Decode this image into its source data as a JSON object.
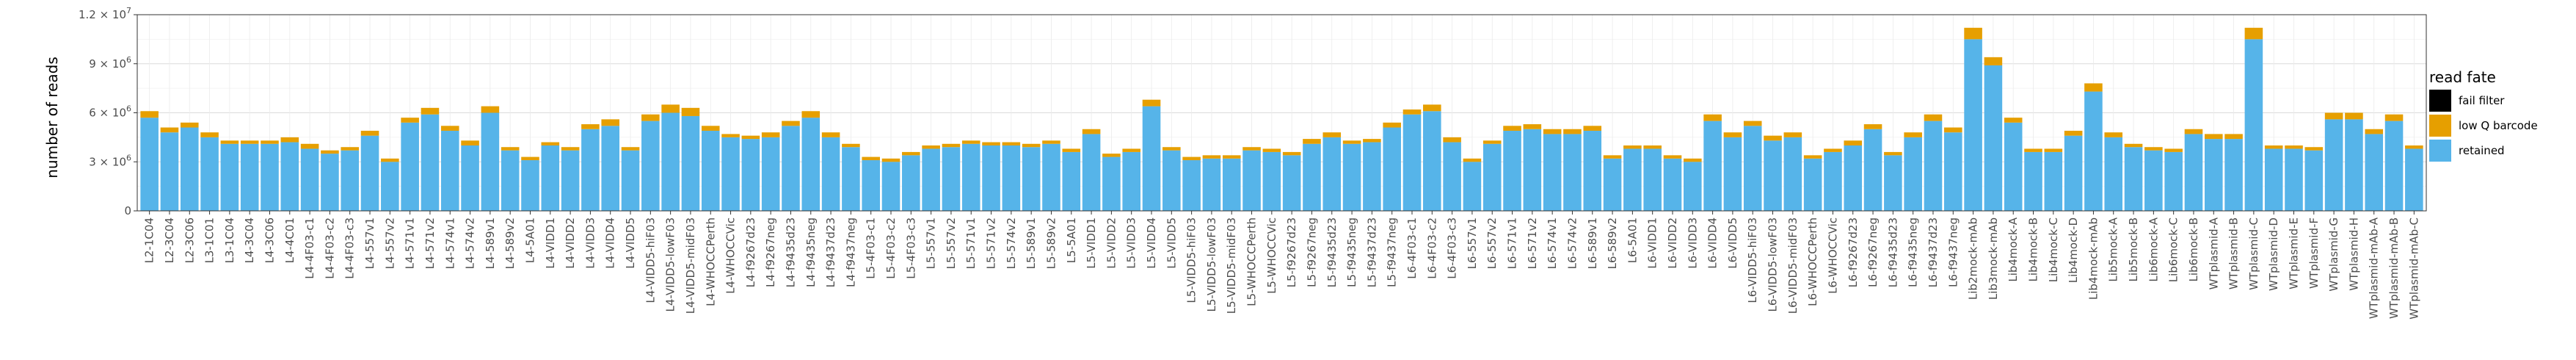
{
  "chart_data": {
    "type": "bar",
    "stacked": true,
    "ylabel": "number of reads",
    "xlabel": "",
    "ylim": [
      0,
      12000000
    ],
    "yticks": [
      0,
      3000000,
      6000000,
      9000000,
      12000000
    ],
    "ytick_labels": [
      {
        "mant": "0",
        "exp": ""
      },
      {
        "mant": "3 × 10",
        "exp": "6"
      },
      {
        "mant": "6 × 10",
        "exp": "6"
      },
      {
        "mant": "9 × 10",
        "exp": "6"
      },
      {
        "mant": "1.2 × 10",
        "exp": "7"
      }
    ],
    "grid": true,
    "legend": {
      "title": "read fate",
      "placement": "right"
    },
    "series": [
      {
        "name": "retained",
        "color": "#56B4E9",
        "values": [
          5700000,
          4800000,
          5100000,
          4500000,
          4100000,
          4100000,
          4100000,
          4200000,
          3800000,
          3500000,
          3700000,
          4600000,
          3000000,
          5400000,
          5900000,
          4900000,
          4000000,
          6000000,
          3700000,
          3100000,
          4000000,
          3700000,
          5000000,
          5200000,
          3700000,
          5500000,
          6000000,
          5800000,
          4900000,
          4500000,
          4400000,
          4500000,
          5200000,
          5700000,
          4500000,
          3900000,
          3100000,
          3000000,
          3400000,
          3800000,
          3900000,
          4100000,
          4000000,
          4000000,
          3900000,
          4100000,
          3600000,
          4700000,
          3300000,
          3600000,
          6400000,
          3700000,
          3100000,
          3200000,
          3200000,
          3700000,
          3600000,
          3400000,
          4100000,
          4500000,
          4100000,
          4200000,
          5100000,
          5900000,
          6100000,
          4200000,
          3000000,
          4100000,
          4900000,
          5000000,
          4700000,
          4700000,
          4900000,
          3200000,
          3800000,
          3800000,
          3200000,
          3000000,
          5500000,
          4500000,
          5200000,
          4300000,
          4500000,
          3200000,
          3600000,
          4000000,
          5000000,
          3400000,
          4500000,
          5500000,
          4800000,
          10500000,
          8900000,
          5400000,
          3600000,
          3600000,
          4600000,
          7300000,
          4500000,
          3900000,
          3700000,
          3600000,
          4700000,
          4400000,
          4400000,
          10500000,
          3800000,
          3800000,
          3700000,
          5600000,
          5600000,
          4700000,
          5500000,
          3800000
        ]
      },
      {
        "name": "low Q barcode",
        "color": "#E69F00",
        "values": [
          400000,
          300000,
          300000,
          300000,
          200000,
          200000,
          200000,
          300000,
          300000,
          200000,
          200000,
          300000,
          200000,
          300000,
          400000,
          300000,
          300000,
          400000,
          200000,
          200000,
          200000,
          200000,
          300000,
          400000,
          200000,
          400000,
          500000,
          500000,
          300000,
          200000,
          200000,
          300000,
          300000,
          400000,
          300000,
          200000,
          200000,
          200000,
          200000,
          200000,
          200000,
          200000,
          200000,
          200000,
          200000,
          200000,
          200000,
          300000,
          200000,
          200000,
          400000,
          200000,
          200000,
          200000,
          200000,
          200000,
          200000,
          200000,
          300000,
          300000,
          200000,
          200000,
          300000,
          300000,
          400000,
          300000,
          200000,
          200000,
          300000,
          300000,
          300000,
          300000,
          300000,
          200000,
          200000,
          200000,
          200000,
          200000,
          400000,
          300000,
          300000,
          300000,
          300000,
          200000,
          200000,
          300000,
          300000,
          200000,
          300000,
          400000,
          300000,
          700000,
          500000,
          300000,
          200000,
          200000,
          300000,
          500000,
          300000,
          200000,
          200000,
          200000,
          300000,
          300000,
          300000,
          700000,
          200000,
          200000,
          200000,
          400000,
          400000,
          300000,
          400000,
          200000
        ]
      },
      {
        "name": "fail filter",
        "color": "#000000",
        "values": [
          0,
          0,
          0,
          0,
          0,
          0,
          0,
          0,
          0,
          0,
          0,
          0,
          0,
          0,
          0,
          0,
          0,
          0,
          0,
          0,
          0,
          0,
          0,
          0,
          0,
          0,
          0,
          0,
          0,
          0,
          0,
          0,
          0,
          0,
          0,
          0,
          0,
          0,
          0,
          0,
          0,
          0,
          0,
          0,
          0,
          0,
          0,
          0,
          0,
          0,
          0,
          0,
          0,
          0,
          0,
          0,
          0,
          0,
          0,
          0,
          0,
          0,
          0,
          0,
          0,
          0,
          0,
          0,
          0,
          0,
          0,
          0,
          0,
          0,
          0,
          0,
          0,
          0,
          0,
          0,
          0,
          0,
          0,
          0,
          0,
          0,
          0,
          0,
          0,
          0,
          0,
          0,
          0,
          0,
          0,
          0,
          0,
          0,
          0,
          0,
          0,
          0,
          0,
          0,
          0,
          0,
          0,
          0,
          0,
          0,
          0,
          0,
          0,
          0
        ]
      }
    ],
    "categories": [
      "L2-1C04",
      "L2-3C04",
      "L2-3C06",
      "L3-1C01",
      "L3-1C04",
      "L4-3C04",
      "L4-3C06",
      "L4-4C01",
      "L4-4F03-c1",
      "L4-4F03-c2",
      "L4-4F03-c3",
      "L4-557v1",
      "L4-557v2",
      "L4-571v1",
      "L4-571v2",
      "L4-574v1",
      "L4-574v2",
      "L4-589v1",
      "L4-589v2",
      "L4-5A01",
      "L4-VIDD1",
      "L4-VIDD2",
      "L4-VIDD3",
      "L4-VIDD4",
      "L4-VIDD5",
      "L4-VIDD5-hiF03",
      "L4-VIDD5-lowF03",
      "L4-VIDD5-midF03",
      "L4-WHOCCPerth",
      "L4-WHOCCVic",
      "L4-f9267d23",
      "L4-f9267neg",
      "L4-f9435d23",
      "L4-f9435neg",
      "L4-f9437d23",
      "L4-f9437neg",
      "L5-4F03-c1",
      "L5-4F03-c2",
      "L5-4F03-c3",
      "L5-557v1",
      "L5-557v2",
      "L5-571v1",
      "L5-571v2",
      "L5-574v2",
      "L5-589v1",
      "L5-589v2",
      "L5-5A01",
      "L5-VIDD1",
      "L5-VIDD2",
      "L5-VIDD3",
      "L5-VIDD4",
      "L5-VIDD5",
      "L5-VIDD5-hiF03",
      "L5-VIDD5-lowF03",
      "L5-VIDD5-midF03",
      "L5-WHOCCPerth",
      "L5-WHOCCVic",
      "L5-f9267d23",
      "L5-f9267neg",
      "L5-f9435d23",
      "L5-f9435neg",
      "L5-f9437d23",
      "L5-f9437neg",
      "L6-4F03-c1",
      "L6-4F03-c2",
      "L6-4F03-c3",
      "L6-557v1",
      "L6-557v2",
      "L6-571v1",
      "L6-571v2",
      "L6-574v1",
      "L6-574v2",
      "L6-589v1",
      "L6-589v2",
      "L6-5A01",
      "L6-VIDD1",
      "L6-VIDD2",
      "L6-VIDD3",
      "L6-VIDD4",
      "L6-VIDD5",
      "L6-VIDD5-hiF03",
      "L6-VIDD5-lowF03",
      "L6-VIDD5-midF03",
      "L6-WHOCCPerth",
      "L6-WHOCCVic",
      "L6-f9267d23",
      "L6-f9267neg",
      "L6-f9435d23",
      "L6-f9435neg",
      "L6-f9437d23",
      "L6-f9437neg",
      "Lib2mock-mAb",
      "Lib3mock-mAb",
      "Lib4mock-A",
      "Lib4mock-B",
      "Lib4mock-C",
      "Lib4mock-D",
      "Lib4mock-mAb",
      "Lib5mock-A",
      "Lib5mock-B",
      "Lib6mock-A",
      "Lib6mock-C",
      "Lib6mock-B",
      "WTplasmid-A",
      "WTplasmid-B",
      "WTplasmid-C",
      "WTplasmid-D",
      "WTplasmid-E",
      "WTplasmid-F",
      "WTplasmid-G",
      "WTplasmid-H",
      "WTplasmid-mAb-A",
      "WTplasmid-mAb-B",
      "WTplasmid-mAb-C"
    ]
  }
}
